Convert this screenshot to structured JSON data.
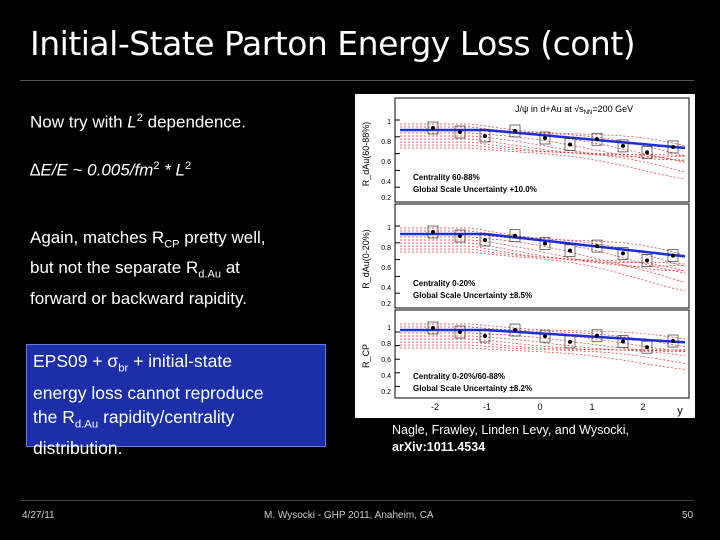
{
  "slide": {
    "title": "Initial-State Parton Energy Loss (cont)",
    "p1_a": "Now try with ",
    "p1_b": "L",
    "p1_sup": "2",
    "p1_c": " dependence.",
    "p2_a": "∆E/E ~ 0.005/fm",
    "p2_sup": "2",
    "p2_b": " * L",
    "p2_sup2": "2",
    "p3_a": "Again, matches R",
    "p3_sub": "CP",
    "p3_b": " pretty well,",
    "p3_c": "but not the separate R",
    "p3_sub2": "d.Au",
    "p3_d": " at",
    "p3_e": "forward or backward rapidity.",
    "box_a": "EPS09 + σ",
    "box_sub": "br",
    "box_b": " + initial-state",
    "box_c": "energy loss cannot reproduce",
    "box_d": "the R",
    "box_sub2": "d.Au",
    "box_e": " rapidity/centrality",
    "box_f": "distribution."
  },
  "figure": {
    "header": "J/ψ in d+Au at √s",
    "header_sub": "NN",
    "header_b": "=200 GeV",
    "panel1_label": "Centrality 60-88%",
    "panel1_unc": "Global Scale Uncertainty +10.0%",
    "panel2_label": "Centrality 0-20%",
    "panel2_unc": "Global Scale Uncertainty ±8.5%",
    "panel3_label": "Centrality 0-20%/60-88%",
    "panel3_unc": "Global Scale Uncertainty ±8.2%",
    "ylabel1": "R_dAu(60-88%)",
    "ylabel2": "R_dAu(0-20%)",
    "ylabel3": "R_CP",
    "xlabel": "y",
    "xticks": [
      "-2",
      "-1",
      "0",
      "1",
      "2"
    ],
    "yticks_top": [
      "1",
      "0.8",
      "0.6",
      "0.4",
      "0.2"
    ],
    "yticks_mid": [
      "1",
      "0.8",
      "0.6",
      "0.4",
      "0.2"
    ],
    "yticks_bot": [
      "1",
      "0.8",
      "0.6",
      "0.4",
      "0.2"
    ]
  },
  "citation": {
    "line1": "Nagle, Frawley, Linden Levy, and Wysocki,",
    "line2": "arXiv:1011.4534"
  },
  "footer": {
    "date": "4/27/11",
    "center": "M. Wysocki - GHP 2011, Anaheim, CA",
    "page": "50"
  },
  "colors": {
    "box": "#1c2fa8",
    "curve_blue": "#1a2ee0",
    "curve_red": "#e03030"
  }
}
